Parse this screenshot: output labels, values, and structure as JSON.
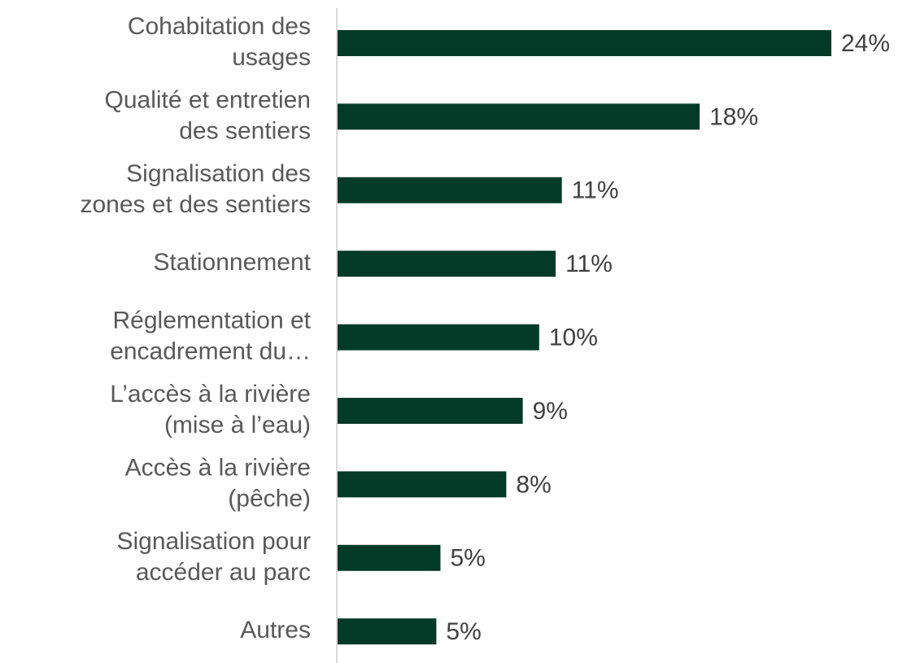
{
  "chart_data": {
    "type": "bar",
    "orientation": "horizontal",
    "categories": [
      "Cohabitation des\nusages",
      "Qualité et entretien\ndes sentiers",
      "Signalisation des\nzones et des sentiers",
      "Stationnement",
      "Réglementation et\nencadrement du…",
      "L’accès à la rivière\n(mise à l’eau)",
      "Accès à la rivière\n(pêche)",
      "Signalisation pour\naccéder au parc",
      "Autres"
    ],
    "values": [
      24,
      17.6,
      10.9,
      10.6,
      9.8,
      9,
      8.2,
      5,
      4.8
    ],
    "value_labels": [
      "24%",
      "18%",
      "11%",
      "11%",
      "10%",
      "9%",
      "8%",
      "5%",
      "5%"
    ],
    "color": "#033a28",
    "xlim": [
      0,
      24
    ]
  }
}
